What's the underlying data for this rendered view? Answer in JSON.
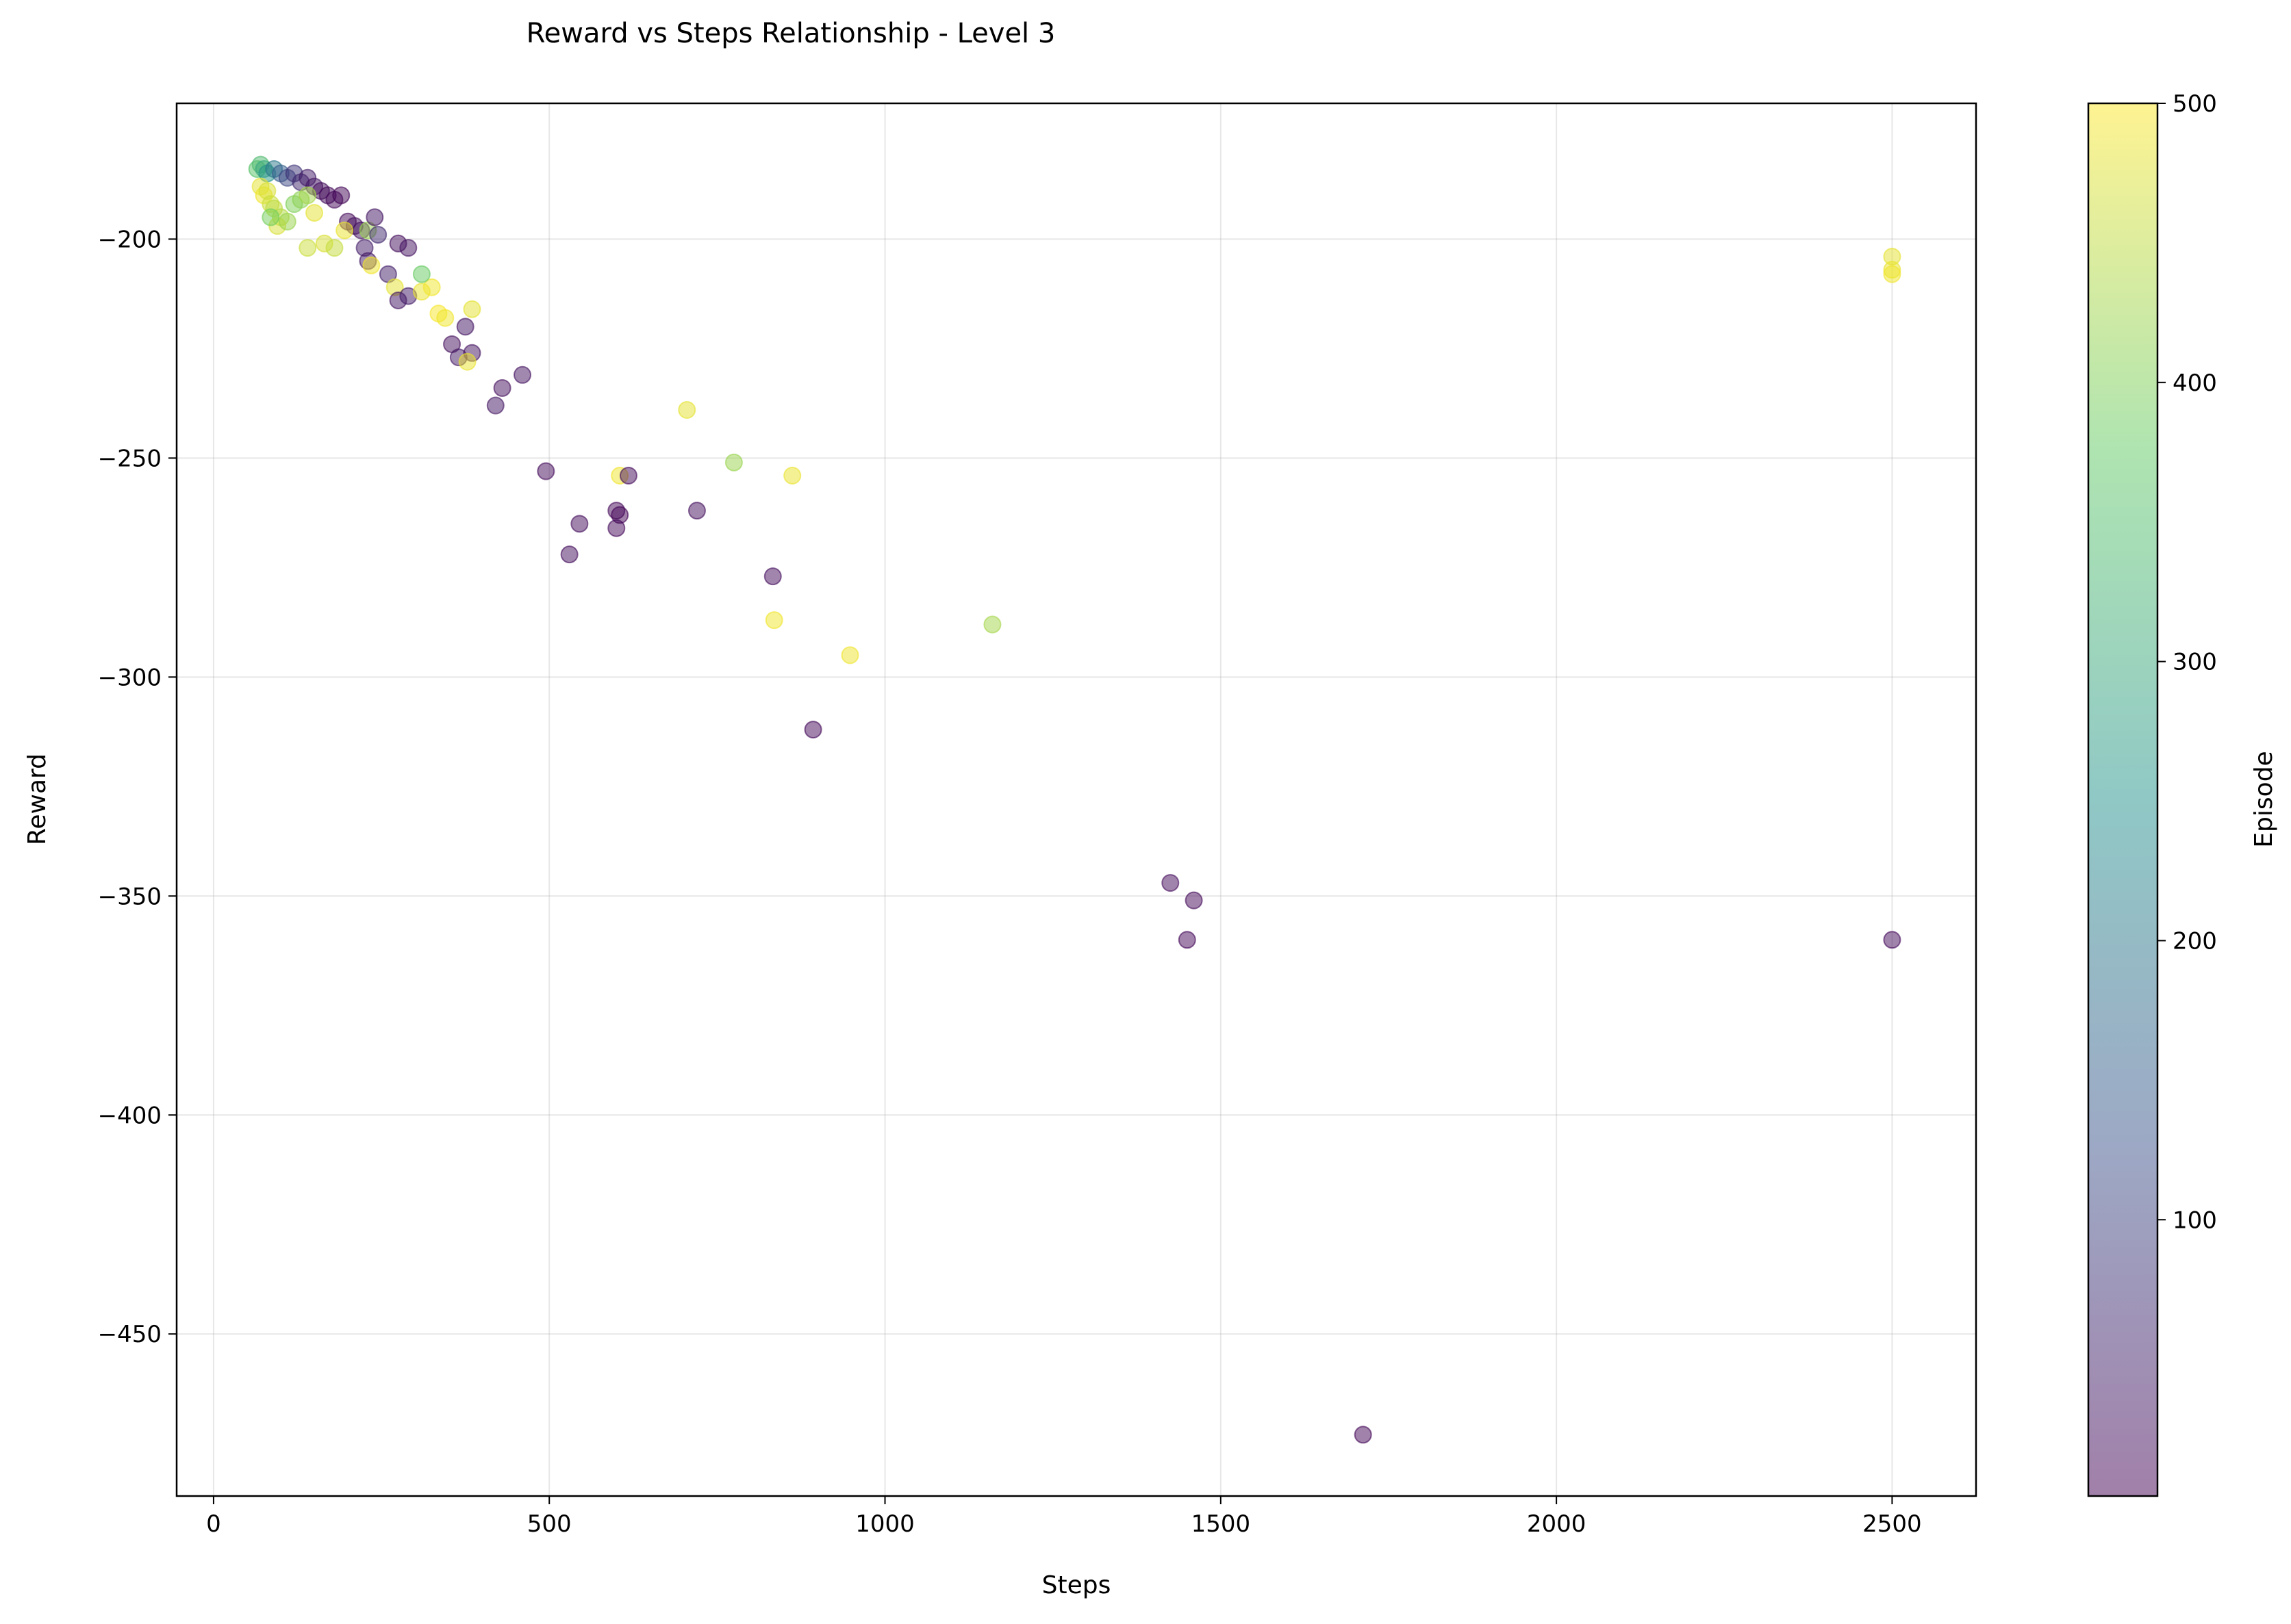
{
  "chart_data": {
    "type": "scatter",
    "title": "Reward vs Steps Relationship - Level 3",
    "xlabel": "Steps",
    "ylabel": "Reward",
    "xlim": [
      -55,
      2625
    ],
    "ylim": [
      -487,
      -169
    ],
    "xticks": [
      0,
      500,
      1000,
      1500,
      2000,
      2500
    ],
    "yticks": [
      -200,
      -250,
      -300,
      -350,
      -400,
      -450
    ],
    "xtick_labels": [
      "0",
      "500",
      "1000",
      "1500",
      "2000",
      "2500"
    ],
    "ytick_labels": [
      "−200",
      "−250",
      "−300",
      "−350",
      "−400",
      "−450"
    ],
    "grid": true,
    "marker_alpha": 0.5,
    "colormap": "viridis",
    "colorbar": {
      "label": "Episode",
      "range": [
        1,
        500
      ],
      "ticks": [
        100,
        200,
        300,
        400,
        500
      ],
      "tick_labels": [
        "100",
        "200",
        "300",
        "400",
        "500"
      ]
    },
    "series": [
      {
        "color_by": "episode",
        "points": [
          {
            "x": 65,
            "y": -184,
            "episode": 360
          },
          {
            "x": 70,
            "y": -183,
            "episode": 340
          },
          {
            "x": 75,
            "y": -184,
            "episode": 300
          },
          {
            "x": 80,
            "y": -185,
            "episode": 260
          },
          {
            "x": 90,
            "y": -184,
            "episode": 200
          },
          {
            "x": 100,
            "y": -185,
            "episode": 150
          },
          {
            "x": 110,
            "y": -186,
            "episode": 110
          },
          {
            "x": 120,
            "y": -185,
            "episode": 80
          },
          {
            "x": 130,
            "y": -187,
            "episode": 60
          },
          {
            "x": 140,
            "y": -186,
            "episode": 40
          },
          {
            "x": 150,
            "y": -188,
            "episode": 30
          },
          {
            "x": 160,
            "y": -189,
            "episode": 20
          },
          {
            "x": 170,
            "y": -190,
            "episode": 15
          },
          {
            "x": 180,
            "y": -191,
            "episode": 10
          },
          {
            "x": 190,
            "y": -190,
            "episode": 8
          },
          {
            "x": 200,
            "y": -196,
            "episode": 12
          },
          {
            "x": 210,
            "y": -197,
            "episode": 20
          },
          {
            "x": 220,
            "y": -198,
            "episode": 25
          },
          {
            "x": 70,
            "y": -188,
            "episode": 480
          },
          {
            "x": 75,
            "y": -190,
            "episode": 490
          },
          {
            "x": 80,
            "y": -189,
            "episode": 470
          },
          {
            "x": 85,
            "y": -192,
            "episode": 460
          },
          {
            "x": 90,
            "y": -193,
            "episode": 450
          },
          {
            "x": 100,
            "y": -195,
            "episode": 440
          },
          {
            "x": 95,
            "y": -197,
            "episode": 470
          },
          {
            "x": 110,
            "y": -196,
            "episode": 420
          },
          {
            "x": 120,
            "y": -192,
            "episode": 400
          },
          {
            "x": 130,
            "y": -191,
            "episode": 410
          },
          {
            "x": 140,
            "y": -190,
            "episode": 430
          },
          {
            "x": 150,
            "y": -194,
            "episode": 480
          },
          {
            "x": 85,
            "y": -195,
            "episode": 390
          },
          {
            "x": 140,
            "y": -202,
            "episode": 460
          },
          {
            "x": 165,
            "y": -201,
            "episode": 470
          },
          {
            "x": 180,
            "y": -202,
            "episode": 455
          },
          {
            "x": 195,
            "y": -198,
            "episode": 485
          },
          {
            "x": 230,
            "y": -198,
            "episode": 420
          },
          {
            "x": 240,
            "y": -195,
            "episode": 30
          },
          {
            "x": 245,
            "y": -199,
            "episode": 60
          },
          {
            "x": 225,
            "y": -202,
            "episode": 40
          },
          {
            "x": 230,
            "y": -205,
            "episode": 35
          },
          {
            "x": 235,
            "y": -206,
            "episode": 490
          },
          {
            "x": 260,
            "y": -208,
            "episode": 45
          },
          {
            "x": 275,
            "y": -201,
            "episode": 20
          },
          {
            "x": 290,
            "y": -202,
            "episode": 25
          },
          {
            "x": 270,
            "y": -211,
            "episode": 480
          },
          {
            "x": 275,
            "y": -214,
            "episode": 30
          },
          {
            "x": 290,
            "y": -213,
            "episode": 40
          },
          {
            "x": 310,
            "y": -212,
            "episode": 485
          },
          {
            "x": 325,
            "y": -211,
            "episode": 490
          },
          {
            "x": 310,
            "y": -208,
            "episode": 380
          },
          {
            "x": 335,
            "y": -217,
            "episode": 495
          },
          {
            "x": 345,
            "y": -218,
            "episode": 490
          },
          {
            "x": 385,
            "y": -216,
            "episode": 480
          },
          {
            "x": 375,
            "y": -220,
            "episode": 30
          },
          {
            "x": 355,
            "y": -224,
            "episode": 20
          },
          {
            "x": 365,
            "y": -227,
            "episode": 35
          },
          {
            "x": 385,
            "y": -226,
            "episode": 25
          },
          {
            "x": 378,
            "y": -228,
            "episode": 485
          },
          {
            "x": 430,
            "y": -234,
            "episode": 20
          },
          {
            "x": 460,
            "y": -231,
            "episode": 25
          },
          {
            "x": 420,
            "y": -238,
            "episode": 30
          },
          {
            "x": 495,
            "y": -253,
            "episode": 15
          },
          {
            "x": 530,
            "y": -272,
            "episode": 20
          },
          {
            "x": 545,
            "y": -265,
            "episode": 18
          },
          {
            "x": 600,
            "y": -262,
            "episode": 10
          },
          {
            "x": 605,
            "y": -263,
            "episode": 5
          },
          {
            "x": 600,
            "y": -266,
            "episode": 12
          },
          {
            "x": 605,
            "y": -254,
            "episode": 490
          },
          {
            "x": 618,
            "y": -254,
            "episode": 15
          },
          {
            "x": 705,
            "y": -239,
            "episode": 480
          },
          {
            "x": 720,
            "y": -262,
            "episode": 20
          },
          {
            "x": 775,
            "y": -251,
            "episode": 420
          },
          {
            "x": 862,
            "y": -254,
            "episode": 485
          },
          {
            "x": 833,
            "y": -277,
            "episode": 18
          },
          {
            "x": 835,
            "y": -287,
            "episode": 490
          },
          {
            "x": 948,
            "y": -295,
            "episode": 488
          },
          {
            "x": 893,
            "y": -312,
            "episode": 12
          },
          {
            "x": 1160,
            "y": -288,
            "episode": 430
          },
          {
            "x": 1425,
            "y": -347,
            "episode": 15
          },
          {
            "x": 1460,
            "y": -351,
            "episode": 12
          },
          {
            "x": 1450,
            "y": -360,
            "episode": 10
          },
          {
            "x": 1712,
            "y": -473,
            "episode": 8
          },
          {
            "x": 2500,
            "y": -360,
            "episode": 14
          },
          {
            "x": 2500,
            "y": -204,
            "episode": 480
          },
          {
            "x": 2500,
            "y": -207,
            "episode": 485
          },
          {
            "x": 2500,
            "y": -208,
            "episode": 490
          }
        ]
      }
    ]
  }
}
